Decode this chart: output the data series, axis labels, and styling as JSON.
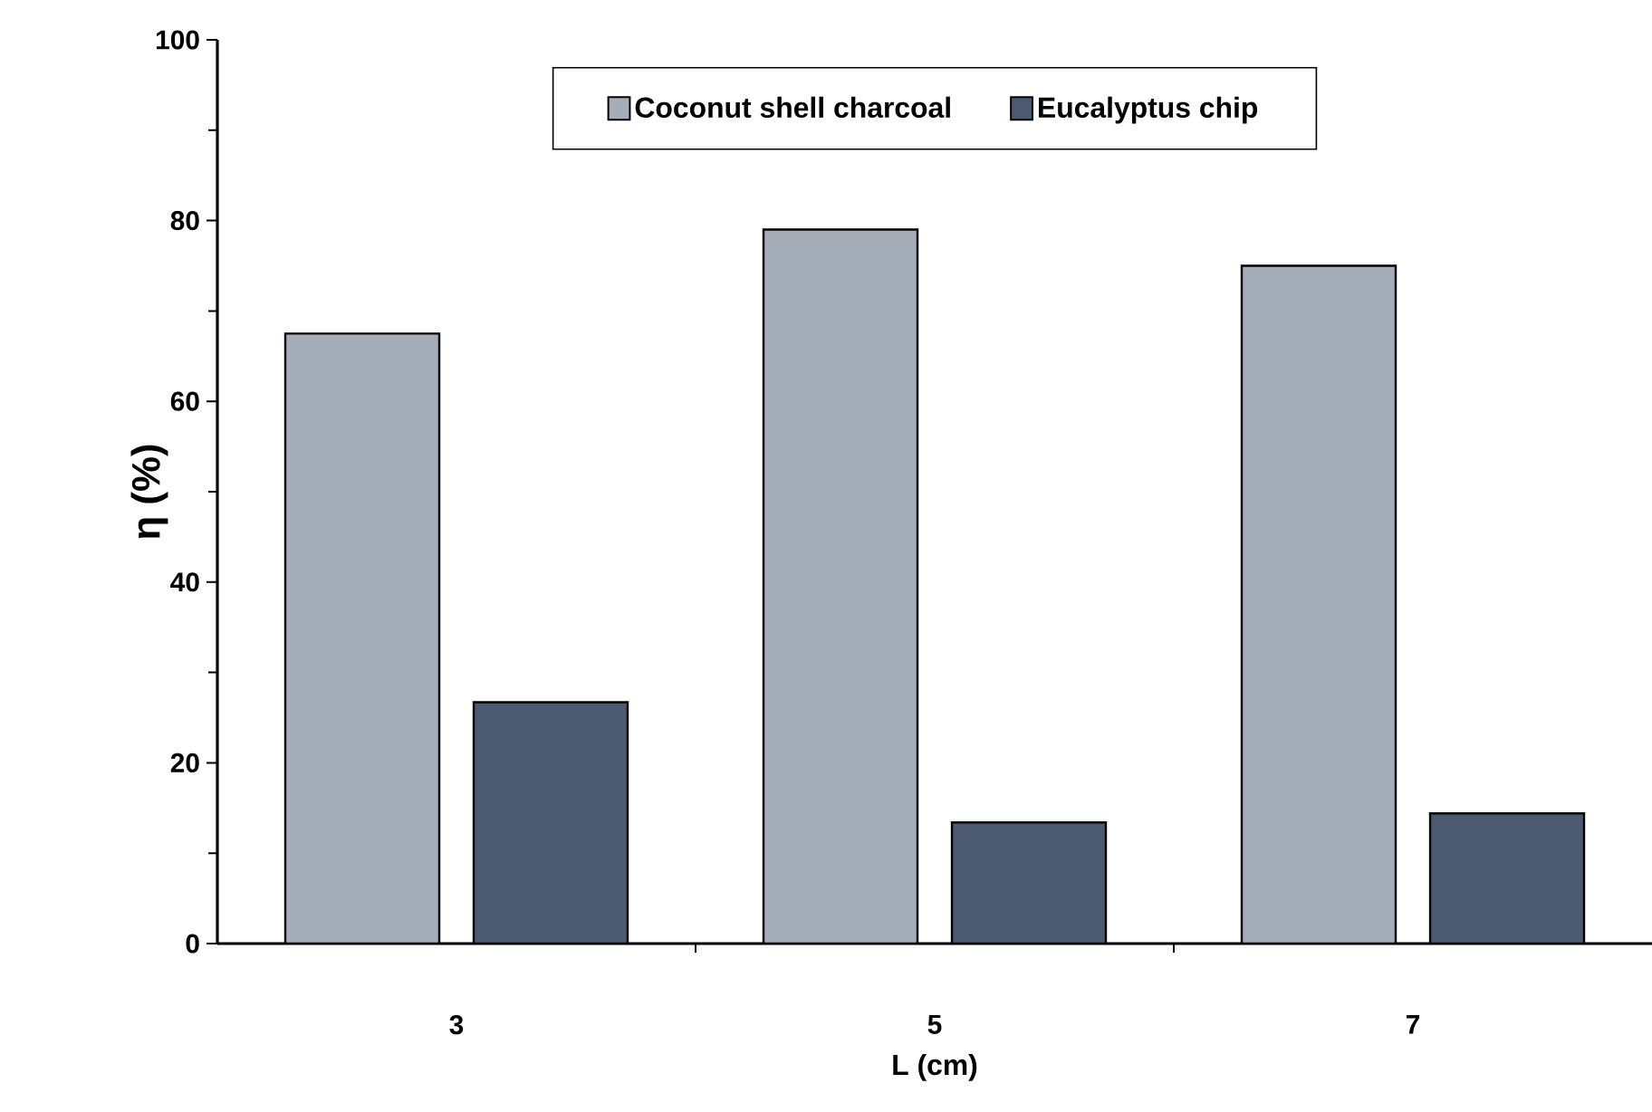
{
  "chart_data": {
    "type": "bar",
    "xlabel": "L (cm)",
    "ylabel": "η (%)",
    "categories": [
      "3",
      "5",
      "7"
    ],
    "series": [
      {
        "name": "Coconut shell charcoal",
        "color": "#a5adb8",
        "values": [
          67.5,
          79,
          75
        ]
      },
      {
        "name": "Eucalyptus chip",
        "color": "#4b5a6e",
        "values": [
          26.7,
          13.4,
          14.4
        ]
      }
    ],
    "ylim": [
      0,
      100
    ],
    "yticks": [
      0,
      20,
      40,
      60,
      80,
      100
    ],
    "legend": "top"
  }
}
